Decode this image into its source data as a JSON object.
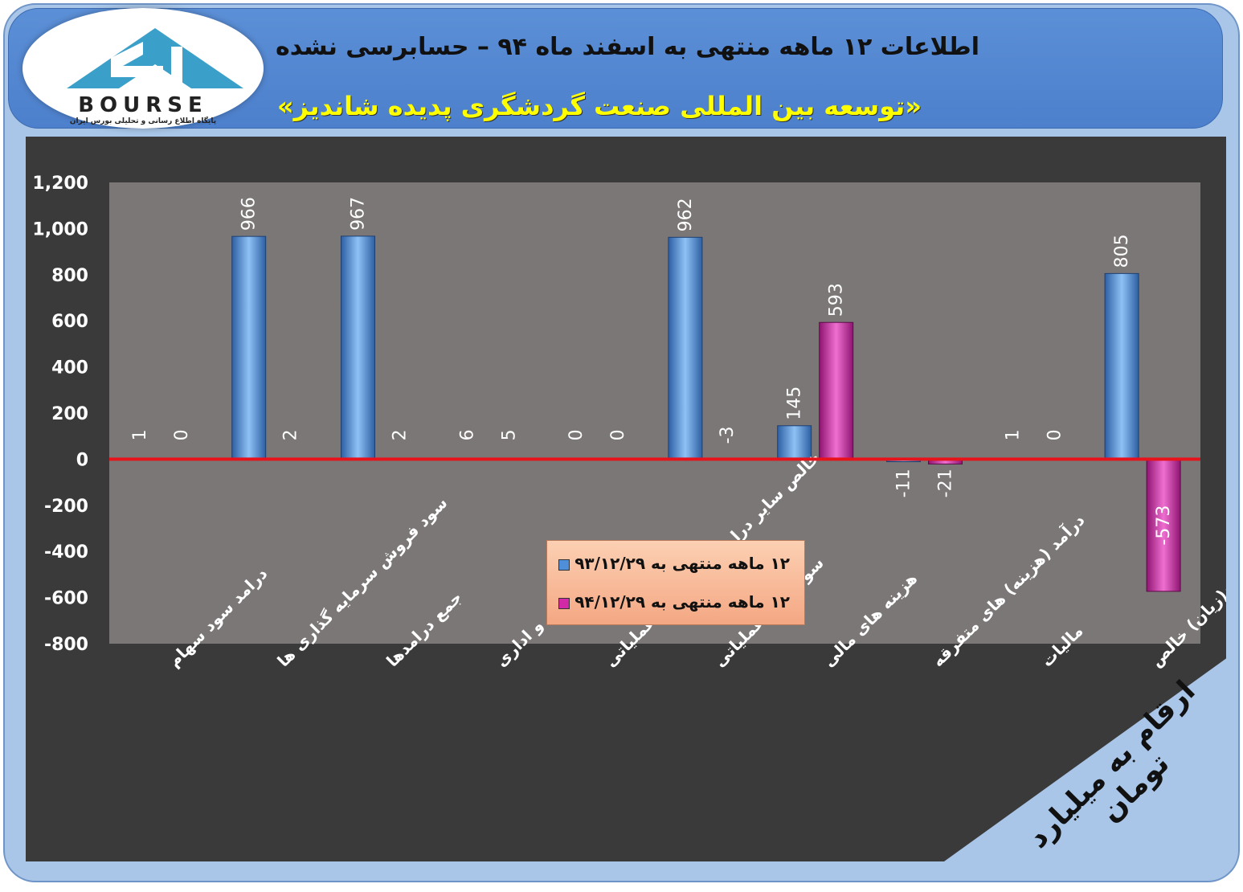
{
  "header": {
    "title": "اطلاعات ۱۲ ماهه منتهی به اسفند ماه ۹۴ – حسابرسی نشده",
    "subtitle": "«توسعه بین المللی صنعت گردشگری پدیده شاندیز»"
  },
  "logo": {
    "text": "BOURSE",
    "tagline": "پایگاه اطلاع رسانی و تحلیلی بورس ایران"
  },
  "unit_label": "ارقام به میلیارد تومان",
  "colors": {
    "series1": "#4f8ed8",
    "series2": "#d22aa6",
    "zero_line": "#e8121b",
    "plot_bg": "#7c7777",
    "frame": "#a9c6e8",
    "header": "#5687d2"
  },
  "chart_data": {
    "type": "bar",
    "title": "",
    "xlabel": "",
    "ylabel": "",
    "ylim": [
      -800,
      1200
    ],
    "yticks": [
      "-800",
      "-600",
      "-400",
      "-200",
      "0",
      "200",
      "400",
      "600",
      "800",
      "1,000",
      "1,200"
    ],
    "yticks_values": [
      -800,
      -600,
      -400,
      -200,
      0,
      200,
      400,
      600,
      800,
      1000,
      1200
    ],
    "grid": false,
    "legend_position": "bottom-center",
    "categories": [
      "درامد سود سهام",
      "سود فروش سرمایه گذاری ها",
      "جمع درامدها",
      "هزینه عمومی و اداری",
      "خالص سایر درامد(هزینه)های عملیاتی",
      "سود(زیان)عملیاتی",
      "هزینه های مالی",
      "درآمد (هزینه) های متفرقه",
      "مالیات",
      "سود(زیان) خالص"
    ],
    "series": [
      {
        "name": "۱۲ ماهه منتهی به ۹۳/۱۲/۲۹",
        "values": [
          1,
          966,
          967,
          6,
          0,
          962,
          145,
          -11,
          1,
          805
        ],
        "labels": [
          "1",
          "966",
          "967",
          "6",
          "0",
          "962",
          "145",
          "-11",
          "1",
          "805"
        ]
      },
      {
        "name": "۱۲ ماهه منتهی به ۹۴/۱۲/۲۹",
        "values": [
          0,
          2,
          2,
          5,
          0,
          -3,
          593,
          -21,
          0,
          -573
        ],
        "labels": [
          "0",
          "2",
          "2",
          "5",
          "0",
          "-3",
          "593",
          "-21",
          "0",
          "-573"
        ]
      }
    ]
  }
}
